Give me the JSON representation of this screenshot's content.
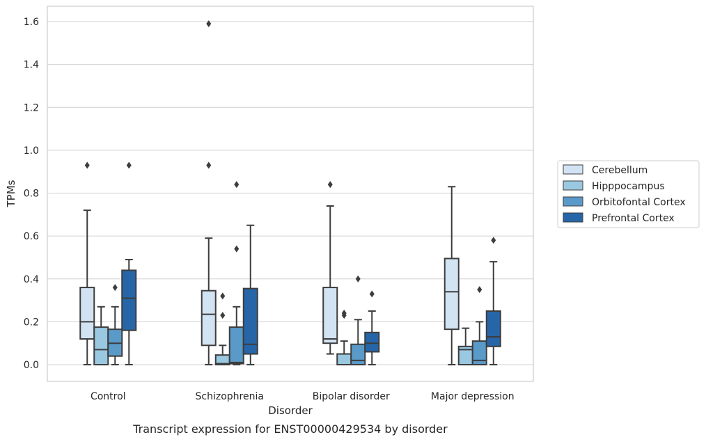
{
  "chart_data": {
    "type": "box",
    "title": "",
    "caption": "Transcript expression for ENST00000429534 by disorder",
    "xlabel": "Disorder",
    "ylabel": "TPMs",
    "ylim": [
      -0.08,
      1.67
    ],
    "yticks": [
      "0.0",
      "0.2",
      "0.4",
      "0.6",
      "0.8",
      "1.0",
      "1.2",
      "1.4",
      "1.6"
    ],
    "grid": "horizontal",
    "legend_position": "right",
    "categories": [
      "Control",
      "Schizophrenia",
      "Bipolar disorder",
      "Major depression"
    ],
    "series": [
      {
        "name": "Cerebellum",
        "color": "#d2e3f3",
        "boxes": [
          {
            "whislo": 0.0,
            "q1": 0.12,
            "med": 0.2,
            "q3": 0.36,
            "whishi": 0.72,
            "fliers": [
              0.93
            ]
          },
          {
            "whislo": 0.0,
            "q1": 0.09,
            "med": 0.235,
            "q3": 0.345,
            "whishi": 0.59,
            "fliers": [
              0.93,
              1.59
            ]
          },
          {
            "whislo": 0.05,
            "q1": 0.1,
            "med": 0.12,
            "q3": 0.36,
            "whishi": 0.74,
            "fliers": [
              0.84
            ]
          },
          {
            "whislo": 0.0,
            "q1": 0.165,
            "med": 0.34,
            "q3": 0.495,
            "whishi": 0.83,
            "fliers": []
          }
        ]
      },
      {
        "name": "Hipppocampus",
        "color": "#9ac8e0",
        "boxes": [
          {
            "whislo": 0.0,
            "q1": 0.0,
            "med": 0.07,
            "q3": 0.175,
            "whishi": 0.27,
            "fliers": []
          },
          {
            "whislo": 0.0,
            "q1": 0.0,
            "med": 0.005,
            "q3": 0.045,
            "whishi": 0.09,
            "fliers": [
              0.23,
              0.32
            ]
          },
          {
            "whislo": 0.0,
            "q1": 0.0,
            "med": 0.0,
            "q3": 0.05,
            "whishi": 0.11,
            "fliers": [
              0.23,
              0.24
            ]
          },
          {
            "whislo": 0.0,
            "q1": 0.0,
            "med": 0.07,
            "q3": 0.085,
            "whishi": 0.17,
            "fliers": []
          }
        ]
      },
      {
        "name": "Orbitofontal Cortex",
        "color": "#5a9ac9",
        "boxes": [
          {
            "whislo": 0.0,
            "q1": 0.04,
            "med": 0.1,
            "q3": 0.165,
            "whishi": 0.27,
            "fliers": [
              0.36
            ]
          },
          {
            "whislo": 0.0,
            "q1": 0.005,
            "med": 0.01,
            "q3": 0.175,
            "whishi": 0.27,
            "fliers": [
              0.54,
              0.84
            ]
          },
          {
            "whislo": 0.0,
            "q1": 0.0,
            "med": 0.02,
            "q3": 0.095,
            "whishi": 0.21,
            "fliers": [
              0.4
            ]
          },
          {
            "whislo": 0.0,
            "q1": 0.0,
            "med": 0.02,
            "q3": 0.11,
            "whishi": 0.2,
            "fliers": [
              0.35
            ]
          }
        ]
      },
      {
        "name": "Prefrontal Cortex",
        "color": "#2666a8",
        "boxes": [
          {
            "whislo": 0.0,
            "q1": 0.16,
            "med": 0.31,
            "q3": 0.44,
            "whishi": 0.49,
            "fliers": [
              0.93
            ]
          },
          {
            "whislo": 0.0,
            "q1": 0.05,
            "med": 0.095,
            "q3": 0.355,
            "whishi": 0.65,
            "fliers": []
          },
          {
            "whislo": 0.0,
            "q1": 0.06,
            "med": 0.1,
            "q3": 0.15,
            "whishi": 0.25,
            "fliers": [
              0.33
            ]
          },
          {
            "whislo": 0.0,
            "q1": 0.085,
            "med": 0.13,
            "q3": 0.25,
            "whishi": 0.48,
            "fliers": [
              0.58
            ]
          }
        ]
      }
    ]
  }
}
